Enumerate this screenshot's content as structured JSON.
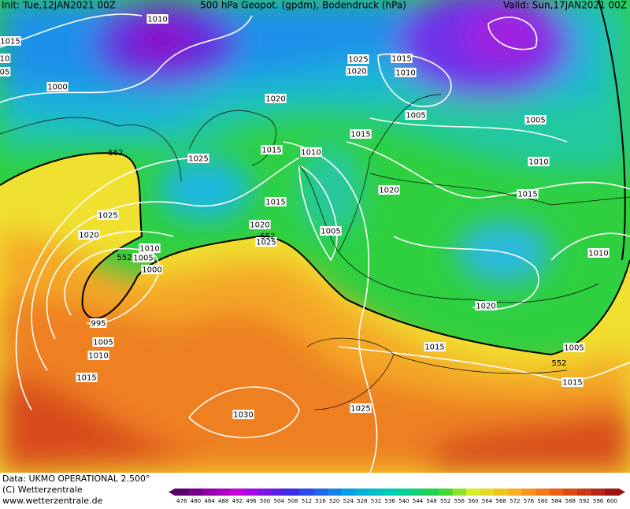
{
  "header": {
    "init": "Init: Tue,12JAN2021 00Z",
    "title": "500 hPa Geopot. (gpdm), Bodendruck (hPa)",
    "valid": "Valid: Sun,17JAN2021 00Z"
  },
  "pressure_labels": [
    "1010",
    "1015",
    "10",
    "05",
    "1000",
    "1025",
    "1015",
    "1020",
    "1010",
    "1020",
    "1005",
    "1005",
    "1015",
    "1010",
    "1015",
    "1025",
    "1010",
    "1020",
    "1015",
    "1015",
    "1025",
    "1005",
    "1020",
    "1020",
    "1025",
    "1010",
    "1005",
    "1000",
    "1010",
    "1020",
    "995",
    "1005",
    "1010",
    "1015",
    "1005",
    "1015",
    "1015",
    "1030",
    "1025"
  ],
  "height_labels": [
    "562",
    "552",
    "552",
    "552"
  ],
  "colorbar": {
    "labels": [
      476,
      480,
      484,
      488,
      492,
      496,
      500,
      504,
      508,
      512,
      516,
      520,
      524,
      528,
      532,
      536,
      540,
      544,
      548,
      552,
      556,
      560,
      564,
      568,
      572,
      576,
      580,
      584,
      588,
      592,
      596,
      600
    ]
  },
  "footer": {
    "data": "Data: UKMO OPERATIONAL 2.500°",
    "copyright": "(C) Wetterzentrale",
    "url": "www.wetterzentrale.de"
  }
}
